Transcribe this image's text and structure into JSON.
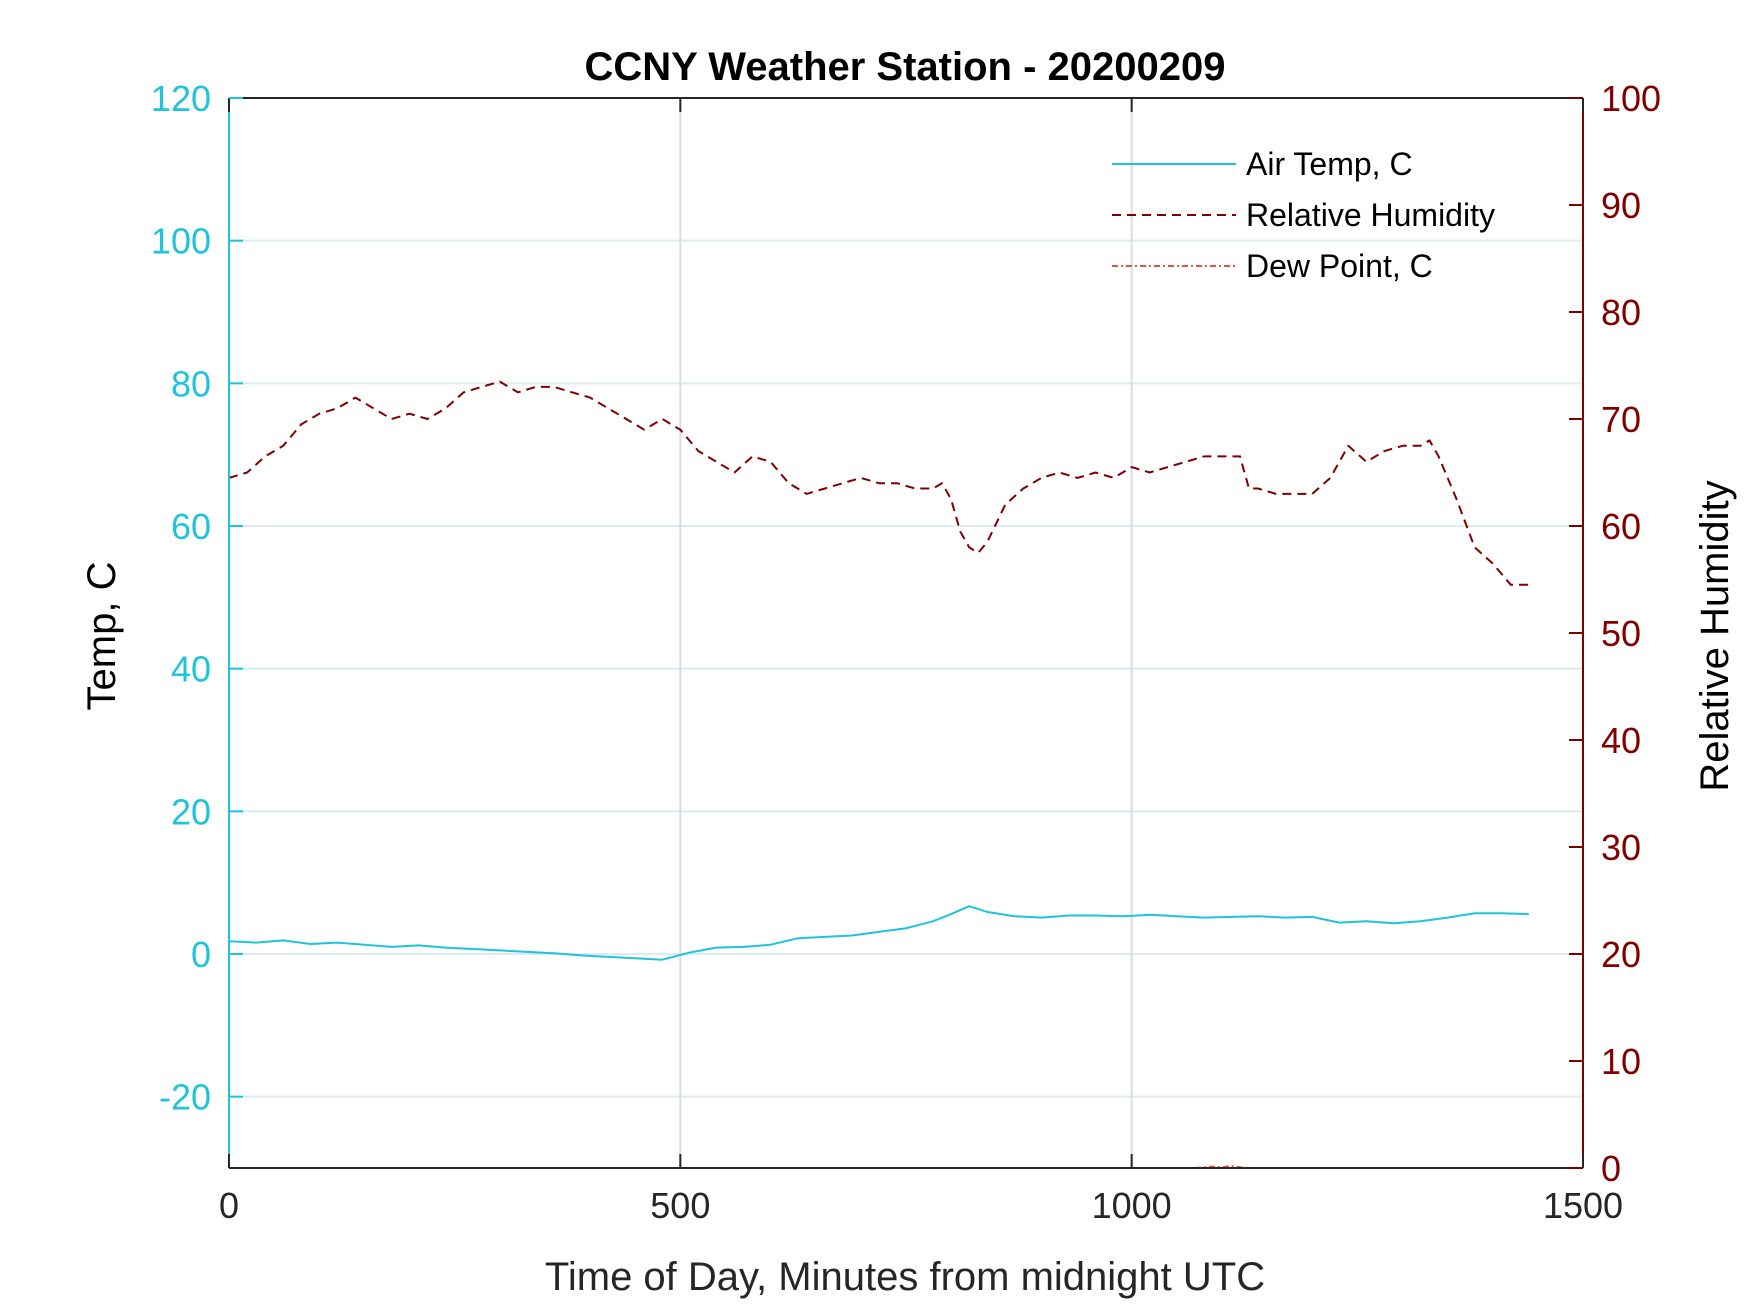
{
  "chart_data": {
    "type": "line",
    "title": "CCNY Weather Station - 20200209",
    "xlabel": "Time of Day, Minutes from midnight UTC",
    "ylabel_left": "Temp, C",
    "ylabel_right": "Relative Humidity",
    "xlim": [
      0,
      1500
    ],
    "ylim_left": [
      -30,
      120
    ],
    "ylim_right": [
      0,
      100
    ],
    "xticks": [
      0,
      500,
      1000,
      1500
    ],
    "yticks_left": [
      -20,
      0,
      20,
      40,
      60,
      80,
      100,
      120
    ],
    "yticks_right": [
      0,
      10,
      20,
      30,
      40,
      50,
      60,
      70,
      80,
      90,
      100
    ],
    "grid": true,
    "legend_position": "top-right",
    "colors": {
      "left_axis": "#1fc4db",
      "right_axis": "#800000",
      "temp_line": "#1fc4db",
      "humidity_line": "#800000",
      "dewpoint_line": "#e2553a",
      "grid": "#dcebf2",
      "vgrid": "#d8dde3",
      "box": "#262626"
    },
    "series": [
      {
        "name": "Air Temp, C",
        "axis": "left",
        "style": "solid",
        "x": [
          0,
          30,
          60,
          90,
          120,
          150,
          180,
          210,
          240,
          270,
          300,
          330,
          360,
          390,
          420,
          450,
          480,
          510,
          540,
          570,
          600,
          630,
          660,
          690,
          720,
          750,
          780,
          800,
          820,
          840,
          870,
          900,
          930,
          960,
          990,
          1020,
          1050,
          1080,
          1110,
          1140,
          1170,
          1200,
          1230,
          1260,
          1290,
          1320,
          1350,
          1380,
          1410,
          1440
        ],
        "values": [
          1.8,
          1.6,
          1.9,
          1.4,
          1.6,
          1.3,
          1.0,
          1.2,
          0.9,
          0.7,
          0.5,
          0.3,
          0.1,
          -0.2,
          -0.4,
          -0.6,
          -0.8,
          0.2,
          0.9,
          1.0,
          1.3,
          2.2,
          2.4,
          2.6,
          3.1,
          3.6,
          4.6,
          5.6,
          6.7,
          5.9,
          5.3,
          5.1,
          5.4,
          5.4,
          5.3,
          5.5,
          5.3,
          5.1,
          5.2,
          5.3,
          5.1,
          5.2,
          4.4,
          4.6,
          4.3,
          4.6,
          5.1,
          5.7,
          5.7,
          5.6
        ]
      },
      {
        "name": "Relative Humidity",
        "axis": "right",
        "style": "dashed",
        "x": [
          0,
          20,
          40,
          60,
          80,
          100,
          120,
          140,
          160,
          180,
          200,
          220,
          240,
          260,
          280,
          300,
          320,
          340,
          360,
          380,
          400,
          420,
          440,
          460,
          480,
          500,
          520,
          540,
          560,
          580,
          600,
          620,
          640,
          660,
          680,
          700,
          720,
          740,
          760,
          780,
          790,
          800,
          810,
          820,
          830,
          840,
          860,
          880,
          900,
          920,
          940,
          960,
          980,
          1000,
          1020,
          1040,
          1060,
          1080,
          1100,
          1120,
          1130,
          1140,
          1160,
          1180,
          1200,
          1220,
          1240,
          1260,
          1280,
          1300,
          1320,
          1330,
          1340,
          1360,
          1380,
          1400,
          1420,
          1440
        ],
        "values": [
          64.5,
          65.0,
          66.5,
          67.5,
          69.5,
          70.5,
          71.0,
          72.0,
          71.0,
          70.0,
          70.5,
          70.0,
          71.0,
          72.5,
          73.0,
          73.5,
          72.5,
          73.0,
          73.0,
          72.5,
          72.0,
          71.0,
          70.0,
          69.0,
          70.0,
          69.0,
          67.0,
          66.0,
          65.0,
          66.5,
          66.0,
          64.0,
          63.0,
          63.5,
          64.0,
          64.5,
          64.0,
          64.0,
          63.5,
          63.5,
          64.0,
          62.5,
          59.5,
          58.0,
          57.5,
          58.5,
          62.0,
          63.5,
          64.5,
          65.0,
          64.5,
          65.0,
          64.5,
          65.5,
          65.0,
          65.5,
          66.0,
          66.5,
          66.5,
          66.5,
          63.5,
          63.5,
          63.0,
          63.0,
          63.0,
          64.5,
          67.5,
          66.0,
          67.0,
          67.5,
          67.5,
          68.0,
          66.5,
          62.5,
          58.0,
          56.5,
          54.5,
          54.5
        ]
      },
      {
        "name": "Dew Point, C",
        "axis": "left",
        "style": "dashdot",
        "x": [
          1070,
          1080,
          1090,
          1100,
          1110,
          1120,
          1130
        ],
        "values": [
          -30.0,
          -29.9,
          -29.8,
          -29.9,
          -29.7,
          -29.9,
          -30.0
        ]
      }
    ]
  }
}
